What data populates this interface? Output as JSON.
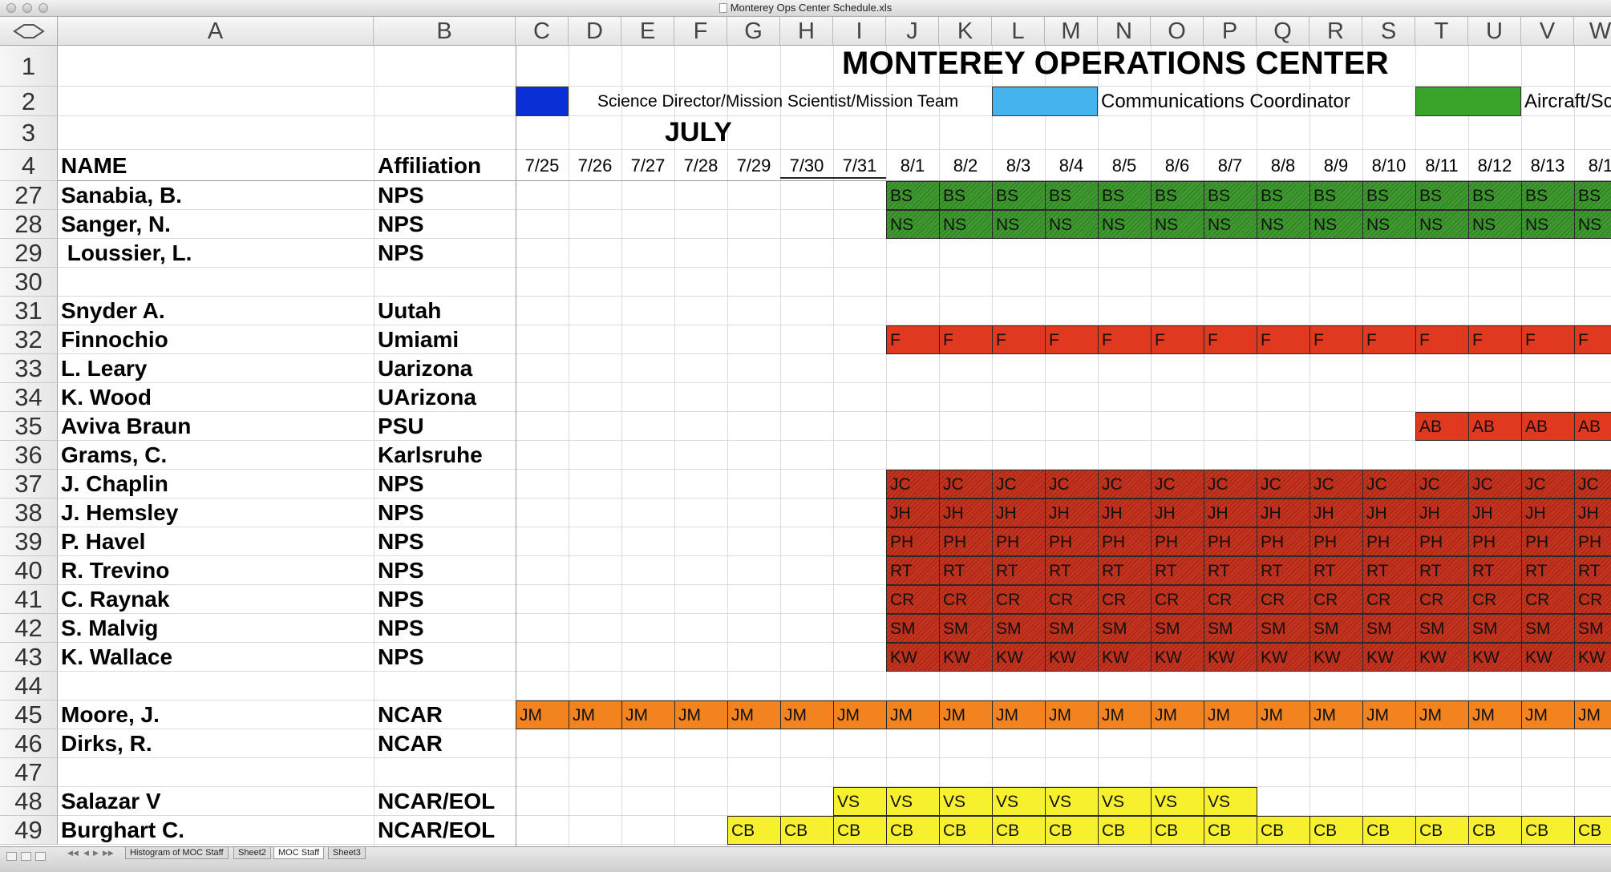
{
  "window": {
    "title": "Monterey Ops Center Schedule.xls"
  },
  "columns": [
    "A",
    "B",
    "C",
    "D",
    "E",
    "F",
    "G",
    "H",
    "I",
    "J",
    "K",
    "L",
    "M",
    "N",
    "O",
    "P",
    "Q",
    "R",
    "S",
    "T",
    "U",
    "V",
    "W"
  ],
  "sheet": {
    "title": "MONTEREY OPERATIONS CENTER",
    "legend": [
      {
        "color": "#0a2fd6",
        "label": "Science Director/Mission Scientist/Mission Team"
      },
      {
        "color": "#45b4ee",
        "label": "Communications Coordinator"
      },
      {
        "color": "#3aa32a",
        "label": "Aircraft/Sc"
      }
    ],
    "month": "JULY",
    "header": {
      "name": "NAME",
      "affiliation": "Affiliation"
    },
    "dates": [
      "7/25",
      "7/26",
      "7/27",
      "7/28",
      "7/29",
      "7/30",
      "7/31",
      "8/1",
      "8/2",
      "8/3",
      "8/4",
      "8/5",
      "8/6",
      "8/7",
      "8/8",
      "8/9",
      "8/10",
      "8/11",
      "8/12",
      "8/13",
      "8/1"
    ],
    "rows": [
      {
        "num": "27",
        "name": "Sanabia, B.",
        "aff": "NPS",
        "code": "BS",
        "start": 7,
        "end": 20,
        "color": "#3e9a2f",
        "hatched": true
      },
      {
        "num": "28",
        "name": "Sanger, N.",
        "aff": "NPS",
        "code": "NS",
        "start": 7,
        "end": 20,
        "color": "#3e9a2f",
        "hatched": true
      },
      {
        "num": "29",
        "name": " Loussier, L.",
        "aff": "NPS"
      },
      {
        "num": "30",
        "name": "",
        "aff": ""
      },
      {
        "num": "31",
        "name": "Snyder A.",
        "aff": "Uutah"
      },
      {
        "num": "32",
        "name": "Finnochio",
        "aff": "Umiami",
        "code": "F",
        "start": 7,
        "end": 20,
        "color": "#e0391f",
        "hatched": false
      },
      {
        "num": "33",
        "name": "L. Leary",
        "aff": "Uarizona"
      },
      {
        "num": "34",
        "name": "K. Wood",
        "aff": "UArizona"
      },
      {
        "num": "35",
        "name": "Aviva Braun",
        "aff": "PSU",
        "code": "AB",
        "start": 17,
        "end": 20,
        "color": "#e0391f",
        "hatched": false
      },
      {
        "num": "36",
        "name": "Grams, C.",
        "aff": "Karlsruhe"
      },
      {
        "num": "37",
        "name": "J. Chaplin",
        "aff": "NPS",
        "code": "JC",
        "start": 7,
        "end": 20,
        "color": "#c5321d",
        "hatched": true
      },
      {
        "num": "38",
        "name": "J. Hemsley",
        "aff": "NPS",
        "code": "JH",
        "start": 7,
        "end": 20,
        "color": "#c5321d",
        "hatched": true
      },
      {
        "num": "39",
        "name": "P. Havel",
        "aff": "NPS",
        "code": "PH",
        "start": 7,
        "end": 20,
        "color": "#c5321d",
        "hatched": true
      },
      {
        "num": "40",
        "name": "R. Trevino",
        "aff": "NPS",
        "code": "RT",
        "start": 7,
        "end": 20,
        "color": "#c5321d",
        "hatched": true
      },
      {
        "num": "41",
        "name": "C. Raynak",
        "aff": "NPS",
        "code": "CR",
        "start": 7,
        "end": 20,
        "color": "#c5321d",
        "hatched": true
      },
      {
        "num": "42",
        "name": "S. Malvig",
        "aff": "NPS",
        "code": "SM",
        "start": 7,
        "end": 20,
        "color": "#c5321d",
        "hatched": true
      },
      {
        "num": "43",
        "name": "K. Wallace",
        "aff": "NPS",
        "code": "KW",
        "start": 7,
        "end": 20,
        "color": "#c5321d",
        "hatched": true
      },
      {
        "num": "44",
        "name": "",
        "aff": ""
      },
      {
        "num": "45",
        "name": "Moore, J.",
        "aff": "NCAR",
        "code": "JM",
        "start": 0,
        "end": 20,
        "color": "#f3831f",
        "hatched": false
      },
      {
        "num": "46",
        "name": "Dirks, R.",
        "aff": "NCAR"
      },
      {
        "num": "47",
        "name": "",
        "aff": ""
      },
      {
        "num": "48",
        "name": "Salazar V",
        "aff": "NCAR/EOL",
        "code": "VS",
        "start": 6,
        "end": 13,
        "color": "#f7f02e",
        "hatched": false
      },
      {
        "num": "49",
        "name": "Burghart C.",
        "aff": "NCAR/EOL",
        "code": "CB",
        "start": 4,
        "end": 20,
        "color": "#f7f02e",
        "hatched": false
      }
    ]
  },
  "tabs": [
    "Histogram of MOC Staff",
    "Sheet2",
    "MOC Staff",
    "Sheet3"
  ],
  "active_tab": "MOC Staff"
}
